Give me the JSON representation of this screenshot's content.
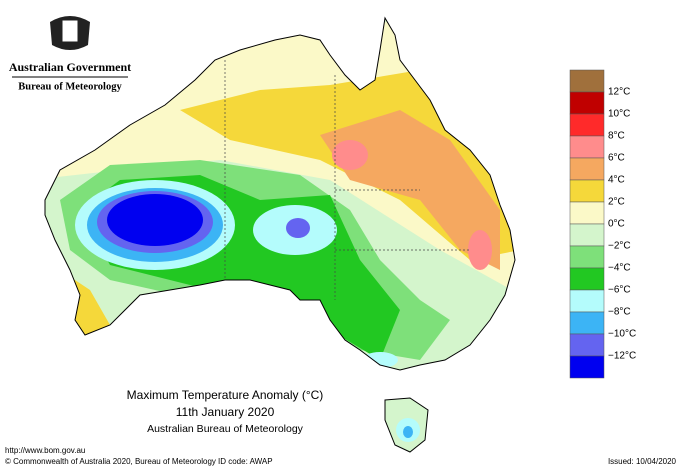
{
  "header": {
    "government": "Australian Government",
    "bureau": "Bureau of Meteorology"
  },
  "title": {
    "main": "Maximum Temperature Anomaly (°C)",
    "date": "11th January 2020",
    "source": "Australian Bureau of Meteorology"
  },
  "legend": {
    "colors": [
      "#a0703c",
      "#c00000",
      "#ff2a2a",
      "#ff8c8c",
      "#f5a860",
      "#f5d83a",
      "#fbf9c8",
      "#d4f5cc",
      "#7ee07a",
      "#22c822",
      "#b4fcfc",
      "#3cb4f5",
      "#6464f0",
      "#0000f0"
    ],
    "labels": [
      "12°C",
      "10°C",
      "8°C",
      "6°C",
      "4°C",
      "2°C",
      "0°C",
      "−2°C",
      "−4°C",
      "−6°C",
      "−8°C",
      "−10°C",
      "−12°C"
    ]
  },
  "footer": {
    "url": "http://www.bom.gov.au",
    "copyright": "© Commonwealth of Australia 2020, Bureau of Meteorology",
    "id_code": "ID code: AWAP",
    "issued": "Issued: 10/04/2020"
  }
}
